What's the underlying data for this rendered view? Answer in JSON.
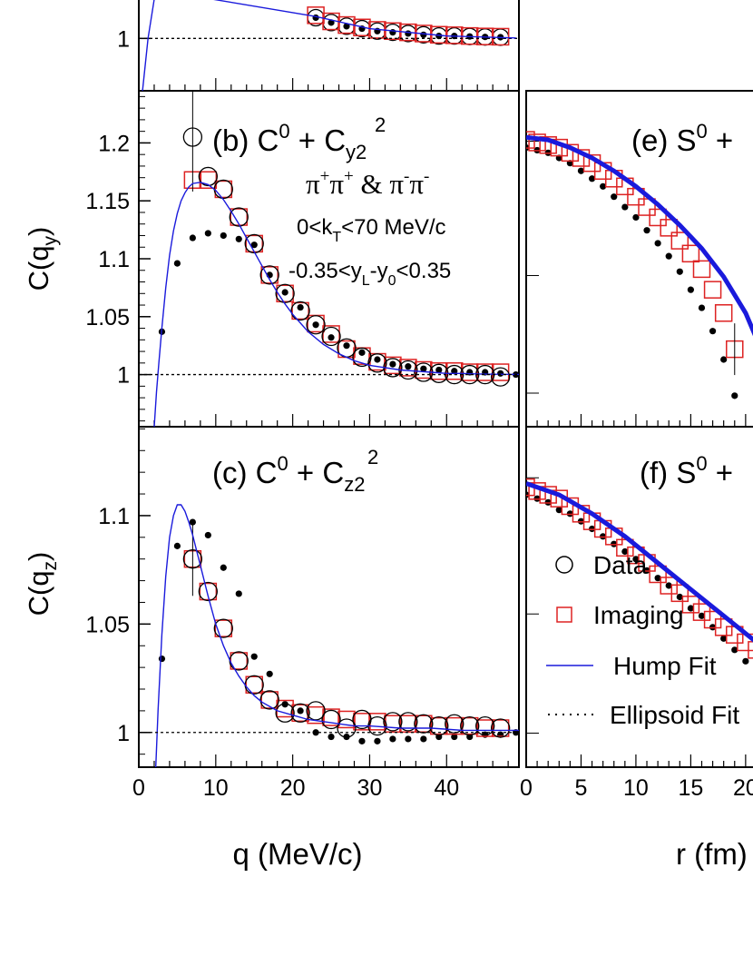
{
  "colors": {
    "data": "#000000",
    "imaging": "#dd2222",
    "hump_fit": "#1a1adc",
    "ellipsoid_fit": "#000000"
  },
  "text": {
    "panel_b_title": {
      "main": "(b) C",
      "sup1": "0",
      "mid": " + C",
      "sub": "y2",
      "sup2": "2"
    },
    "panel_c_title": {
      "main": "(c) C",
      "sup1": "0",
      "mid": " + C",
      "sub": "z2",
      "sup2": "2"
    },
    "panel_e_title": {
      "main": "(e) S",
      "sup1": "0",
      "tail": " +"
    },
    "panel_f_title": {
      "main": "(f) S",
      "sup1": "0",
      "tail": " +"
    },
    "pions": {
      "p1": "π",
      "s1": "+",
      "p2": "π",
      "s2": "+",
      "amp": " & ",
      "p3": "π",
      "s3": "-",
      "p4": "π",
      "s4": "-"
    },
    "kt_cut": {
      "pre": "0<k",
      "sub": "T",
      "post": "<70 MeV/c"
    },
    "y_cut": {
      "pre": "-0.35<y",
      "sub1": "L",
      "mid": "-y",
      "sub2": "0",
      "post": "<0.35"
    },
    "ylabel_b": {
      "pre": "C(q",
      "sub": "y",
      "post": ")"
    },
    "ylabel_c": {
      "pre": "C(q",
      "sub": "z",
      "post": ")"
    },
    "xlabel_left": "q (MeV/c)",
    "xlabel_right": "r (fm)"
  },
  "legend": [
    "Data",
    "Imaging",
    "Hump Fit",
    "Ellipsoid Fit"
  ],
  "chart_data": [
    {
      "type": "scatter",
      "panel": "a",
      "xlim": [
        0,
        50
      ],
      "y_tick_labels": [
        "1"
      ],
      "series": [
        {
          "name": "Data",
          "x": [
            23,
            25,
            27,
            29,
            31,
            33,
            35,
            37,
            39,
            41,
            43,
            45,
            47
          ],
          "y": [
            1.0085,
            1.0065,
            1.005,
            1.004,
            1.003,
            1.0025,
            1.002,
            1.0015,
            1.001,
            1.001,
            1.0008,
            1.0006,
            1.0005
          ]
        },
        {
          "name": "Imaging",
          "x": [
            23,
            25,
            27,
            29,
            31,
            33,
            35,
            37,
            39,
            41,
            43,
            45,
            47
          ],
          "y": [
            1.0095,
            1.007,
            1.0055,
            1.0045,
            1.0035,
            1.003,
            1.0025,
            1.002,
            1.0015,
            1.0013,
            1.001,
            1.0008,
            1.0007
          ]
        }
      ]
    },
    {
      "type": "scatter",
      "panel": "b",
      "xlim": [
        0,
        50
      ],
      "ylim": [
        0.955,
        1.245
      ],
      "x_tick_labels": [
        "0",
        "10",
        "20",
        "30",
        "40"
      ],
      "y_tick_labels": [
        "1",
        "1.05",
        "1.1",
        "1.15",
        "1.2"
      ],
      "series": [
        {
          "name": "Data",
          "x": [
            3,
            5,
            7,
            9,
            11,
            13,
            15,
            17,
            19,
            21,
            23,
            25,
            27,
            29,
            31,
            33,
            35,
            37,
            39,
            41,
            43,
            45,
            47,
            49
          ],
          "y": [
            1.037,
            1.096,
            1.118,
            1.122,
            1.12,
            1.117,
            1.112,
            1.086,
            1.071,
            1.058,
            1.043,
            1.032,
            1.025,
            1.019,
            1.013,
            1.009,
            1.007,
            1.005,
            1.004,
            1.003,
            1.002,
            1.002,
            1.001,
            1.0
          ]
        },
        {
          "name": "Imaging",
          "x": [
            7,
            9,
            11,
            13,
            15,
            17,
            19,
            21,
            23,
            25,
            27,
            29,
            31,
            33,
            35,
            37,
            39,
            41,
            43,
            45,
            47
          ],
          "y": [
            1.168,
            1.168,
            1.16,
            1.136,
            1.113,
            1.086,
            1.07,
            1.055,
            1.044,
            1.035,
            1.022,
            1.016,
            1.011,
            1.008,
            1.006,
            1.004,
            1.003,
            1.003,
            1.002,
            1.002,
            1.002
          ]
        },
        {
          "name": "Data (open)",
          "x": [
            9,
            11,
            13,
            15,
            17,
            19,
            21,
            23,
            25,
            27,
            29,
            31,
            33,
            35,
            37,
            39,
            41,
            43,
            45,
            47
          ],
          "y": [
            1.171,
            1.16,
            1.136,
            1.113,
            1.086,
            1.07,
            1.055,
            1.043,
            1.033,
            1.023,
            1.015,
            1.01,
            1.006,
            1.004,
            1.002,
            1.001,
            1.0,
            1.0,
            1.0,
            0.998
          ]
        },
        {
          "name": "Data (open, point with error bar)",
          "x": [
            7
          ],
          "y": [
            1.205
          ],
          "err": [
            0.047
          ]
        },
        {
          "name": "Hump Fit",
          "type": "line",
          "x": [
            2.0,
            2.3,
            2.6,
            3,
            3.5,
            4,
            4.5,
            5,
            5.5,
            6,
            6.5,
            7,
            8,
            9,
            10,
            11,
            12,
            13,
            14,
            15,
            16,
            17,
            18,
            19,
            20,
            22,
            24,
            26,
            28,
            30,
            32,
            34,
            36,
            38,
            40,
            42,
            44,
            46,
            48,
            50
          ],
          "y": [
            0.955,
            0.985,
            1.01,
            1.04,
            1.075,
            1.103,
            1.124,
            1.139,
            1.15,
            1.157,
            1.162,
            1.165,
            1.166,
            1.164,
            1.159,
            1.151,
            1.141,
            1.13,
            1.118,
            1.106,
            1.094,
            1.082,
            1.071,
            1.061,
            1.052,
            1.037,
            1.026,
            1.018,
            1.012,
            1.008,
            1.006,
            1.004,
            1.003,
            1.002,
            1.001,
            1.001,
            1.0005,
            1.0003,
            1.0002,
            1.0001
          ]
        },
        {
          "name": "Ellipsoid Fit",
          "type": "line",
          "x": [
            0,
            50
          ],
          "y": [
            1,
            1
          ]
        }
      ]
    },
    {
      "type": "scatter",
      "panel": "c",
      "xlim": [
        0,
        50
      ],
      "ylim": [
        0.984,
        1.141
      ],
      "x_tick_labels": [
        "0",
        "10",
        "20",
        "30",
        "40"
      ],
      "y_tick_labels": [
        "1",
        "1.05",
        "1.1"
      ],
      "series": [
        {
          "name": "Data",
          "x": [
            3,
            5,
            7,
            9,
            11,
            13,
            15,
            17,
            19,
            21,
            23,
            25,
            27,
            29,
            31,
            33,
            35,
            37,
            39,
            41,
            43,
            45,
            47,
            49
          ],
          "y": [
            1.034,
            1.086,
            1.097,
            1.091,
            1.076,
            1.064,
            1.035,
            1.027,
            1.013,
            1.01,
            1.0,
            0.998,
            0.998,
            0.996,
            0.996,
            0.997,
            0.997,
            0.997,
            0.998,
            0.998,
            0.998,
            0.999,
            0.999,
            1.0
          ]
        },
        {
          "name": "Imaging",
          "x": [
            7,
            9,
            11,
            13,
            15,
            17,
            19,
            21,
            23,
            25,
            27,
            29,
            31,
            33,
            35,
            37,
            39,
            41,
            43,
            45,
            47
          ],
          "y": [
            1.08,
            1.065,
            1.048,
            1.033,
            1.022,
            1.015,
            1.011,
            1.009,
            1.008,
            1.007,
            1.006,
            1.005,
            1.005,
            1.004,
            1.004,
            1.004,
            1.003,
            1.003,
            1.003,
            1.002,
            1.002
          ]
        },
        {
          "name": "Data (open)",
          "x": [
            7,
            9,
            11,
            13,
            15,
            17,
            19,
            21,
            23,
            25,
            27,
            29,
            31,
            33,
            35,
            37,
            39,
            41,
            43,
            45,
            47
          ],
          "y": [
            1.08,
            1.065,
            1.048,
            1.033,
            1.022,
            1.015,
            1.009,
            1.009,
            1.01,
            1.006,
            1.002,
            1.006,
            1.003,
            1.005,
            1.005,
            1.004,
            1.003,
            1.004,
            1.003,
            1.003,
            1.002
          ],
          "err_x": 7,
          "err": 0.017
        },
        {
          "name": "Hump Fit",
          "type": "line",
          "x": [
            2.2,
            2.5,
            3,
            3.5,
            4,
            4.5,
            5,
            5.5,
            6,
            6.5,
            7,
            7.5,
            8,
            9,
            10,
            11,
            12,
            13,
            14,
            15,
            16,
            17,
            18,
            20,
            22,
            24,
            26,
            28,
            30,
            34,
            38,
            42,
            46,
            50
          ],
          "y": [
            0.984,
            1.01,
            1.045,
            1.072,
            1.09,
            1.1,
            1.105,
            1.105,
            1.102,
            1.097,
            1.091,
            1.084,
            1.077,
            1.063,
            1.05,
            1.04,
            1.032,
            1.026,
            1.021,
            1.017,
            1.014,
            1.012,
            1.01,
            1.008,
            1.006,
            1.005,
            1.004,
            1.003,
            1.003,
            1.002,
            1.002,
            1.001,
            1.001,
            1.001
          ]
        },
        {
          "name": "Ellipsoid Fit",
          "type": "line",
          "x": [
            0,
            50
          ],
          "y": [
            1,
            1
          ]
        }
      ]
    },
    {
      "type": "scatter",
      "panel": "e",
      "xlim": [
        0,
        40
      ],
      "series": [
        {
          "name": "Data",
          "x": [
            0,
            1,
            2,
            3,
            4,
            5,
            6,
            7,
            8,
            9,
            10,
            11,
            12,
            13,
            14,
            15,
            16,
            17,
            18,
            19
          ],
          "y": [
            0.92,
            0.915,
            0.91,
            0.9,
            0.89,
            0.875,
            0.86,
            0.845,
            0.825,
            0.805,
            0.785,
            0.76,
            0.735,
            0.71,
            0.68,
            0.645,
            0.61,
            0.565,
            0.51,
            0.44
          ]
        },
        {
          "name": "Imaging",
          "x": [
            0,
            1,
            2,
            3,
            4,
            5,
            6,
            7,
            8,
            9,
            10,
            11,
            12,
            13,
            14,
            15,
            16,
            17,
            18,
            19
          ],
          "y": [
            0.935,
            0.93,
            0.925,
            0.92,
            0.91,
            0.9,
            0.89,
            0.875,
            0.86,
            0.845,
            0.825,
            0.805,
            0.785,
            0.765,
            0.74,
            0.715,
            0.685,
            0.645,
            0.6,
            0.53
          ],
          "err_x": 19,
          "err": 0.05
        },
        {
          "name": "Hump Fit",
          "type": "line",
          "x": [
            0,
            2,
            4,
            6,
            8,
            10,
            12,
            14,
            16,
            18,
            20,
            21
          ],
          "y": [
            0.94,
            0.935,
            0.92,
            0.9,
            0.875,
            0.845,
            0.81,
            0.77,
            0.725,
            0.67,
            0.6,
            0.55
          ]
        }
      ]
    },
    {
      "type": "scatter",
      "panel": "f",
      "xlim": [
        0,
        40
      ],
      "x_tick_labels": [
        "0",
        "5",
        "10",
        "15",
        "20"
      ],
      "series": [
        {
          "name": "Data",
          "x": [
            0,
            1,
            2,
            3,
            4,
            5,
            6,
            7,
            8,
            9,
            10,
            11,
            12,
            13,
            14,
            15,
            16,
            17,
            18,
            19,
            20,
            21,
            22
          ],
          "y": [
            0.96,
            0.955,
            0.95,
            0.94,
            0.935,
            0.925,
            0.915,
            0.905,
            0.895,
            0.885,
            0.875,
            0.86,
            0.85,
            0.84,
            0.825,
            0.81,
            0.8,
            0.785,
            0.77,
            0.755,
            0.74,
            0.725,
            0.71
          ]
        },
        {
          "name": "Imaging",
          "x": [
            0,
            1,
            2,
            3,
            4,
            5,
            6,
            7,
            8,
            9,
            10,
            11,
            12,
            13,
            14,
            15,
            16,
            17,
            18,
            19,
            20,
            21,
            22
          ],
          "y": [
            0.97,
            0.965,
            0.96,
            0.955,
            0.945,
            0.935,
            0.925,
            0.915,
            0.905,
            0.89,
            0.88,
            0.87,
            0.855,
            0.84,
            0.83,
            0.815,
            0.805,
            0.795,
            0.785,
            0.775,
            0.765,
            0.755,
            0.745
          ]
        },
        {
          "name": "Hump Fit",
          "type": "line",
          "x": [
            0,
            3,
            6,
            9,
            12,
            15,
            18,
            21,
            23
          ],
          "y": [
            0.975,
            0.96,
            0.935,
            0.905,
            0.87,
            0.835,
            0.8,
            0.765,
            0.745
          ]
        }
      ]
    }
  ]
}
